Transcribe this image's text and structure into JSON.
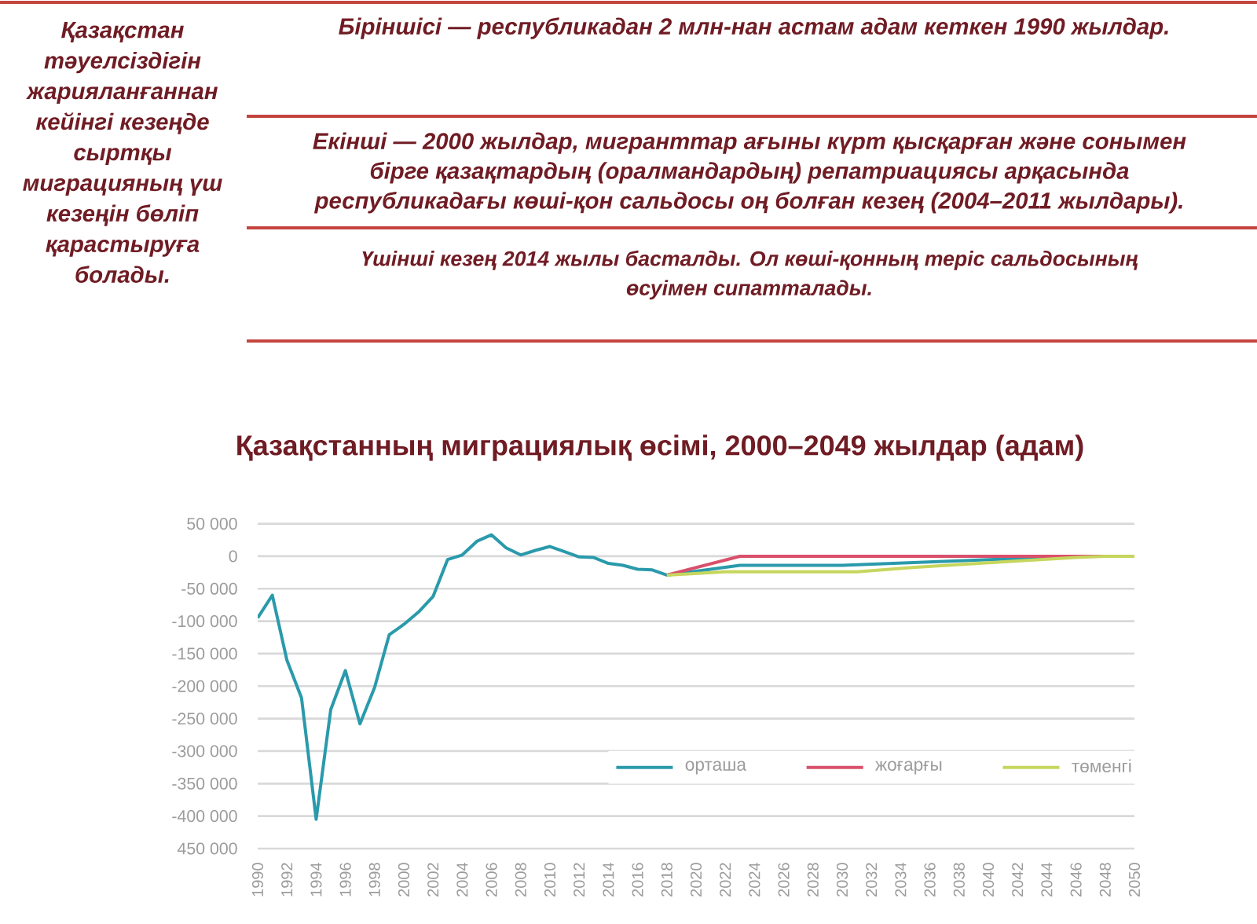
{
  "chart_data": {
    "type": "line",
    "title": "Қазақстанның миграциялық өсімі, 2000–2049 жылдар (адам)",
    "annotations": [
      "Қазақстан тәуелсіздігін жарияланғаннан кейінгі кезеңде сыртқы миграцияның үш кезеңін бөліп қарастыруға болады.",
      "Біріншісі — республикадан 2 млн-нан астам адам кеткен 1990 жылдар.",
      "Екінші — 2000 жылдар, мигранттар ағыны күрт қысқарған және сонымен бірге қазақтардың (оралмандардың) репатриациясы арқасында республикадағы көші-қон сальдосы оң болған кезең (2004–2011 жылдары).",
      "Үшінші кезең 2014 жылы басталды. Ол көші-қонның теріс сальдосының өсуімен сипатталады."
    ],
    "series": [
      {
        "name": "орташа",
        "color": "#2a9aab",
        "x": [
          1990,
          1991,
          1992,
          1993,
          1994,
          1995,
          1996,
          1997,
          1998,
          1999,
          2000,
          2001,
          2002,
          2003,
          2004,
          2005,
          2006,
          2007,
          2008,
          2009,
          2010,
          2011,
          2012,
          2013,
          2014,
          2015,
          2016,
          2017,
          2018,
          2023,
          2030,
          2038,
          2044,
          2047,
          2050
        ],
        "values": [
          -95000,
          -60000,
          -160000,
          -218000,
          -405000,
          -236000,
          -176000,
          -258000,
          -202000,
          -121000,
          -105000,
          -86000,
          -62000,
          -5000,
          2000,
          23000,
          33000,
          13000,
          2000,
          9000,
          15000,
          7000,
          -1000,
          -2000,
          -11000,
          -14000,
          -20000,
          -21000,
          -29000,
          -14000,
          -14000,
          -7000,
          -2000,
          0,
          0
        ]
      },
      {
        "name": "жоғарғы",
        "color": "#d9506b",
        "x": [
          2018,
          2023,
          2050
        ],
        "values": [
          -29000,
          0,
          0
        ]
      },
      {
        "name": "төменгі",
        "color": "#c6d65e",
        "x": [
          2018,
          2022,
          2031,
          2035,
          2040,
          2046,
          2048,
          2050
        ],
        "values": [
          -29000,
          -24000,
          -24000,
          -17000,
          -10000,
          -2000,
          0,
          0
        ]
      }
    ],
    "xlim": [
      1990,
      2050
    ],
    "xticks": [
      1990,
      1992,
      1994,
      1996,
      1998,
      2000,
      2002,
      2004,
      2006,
      2008,
      2010,
      2012,
      2014,
      2016,
      2018,
      2020,
      2022,
      2024,
      2026,
      2028,
      2030,
      2032,
      2034,
      2036,
      2038,
      2040,
      2042,
      2044,
      2046,
      2048,
      2050
    ],
    "ylim": [
      -450000,
      50000
    ],
    "yticks": [
      {
        "value": 50000,
        "label": "50 000"
      },
      0,
      {
        "value": -50000,
        "label": "-50 000"
      },
      {
        "value": -100000,
        "label": "-100 000"
      },
      {
        "value": -150000,
        "label": "-150 000"
      },
      {
        "value": -200000,
        "label": "-200 000"
      },
      {
        "value": -250000,
        "label": "-250 000"
      },
      {
        "value": -300000,
        "label": "-300 000"
      },
      {
        "value": -350000,
        "label": "-350 000"
      },
      {
        "value": -400000,
        "label": "-400 000"
      },
      {
        "value": -450000,
        "label": "450 000"
      }
    ],
    "grid": "y",
    "legend": "bottom right",
    "marker": "none",
    "line_style": "solid"
  }
}
